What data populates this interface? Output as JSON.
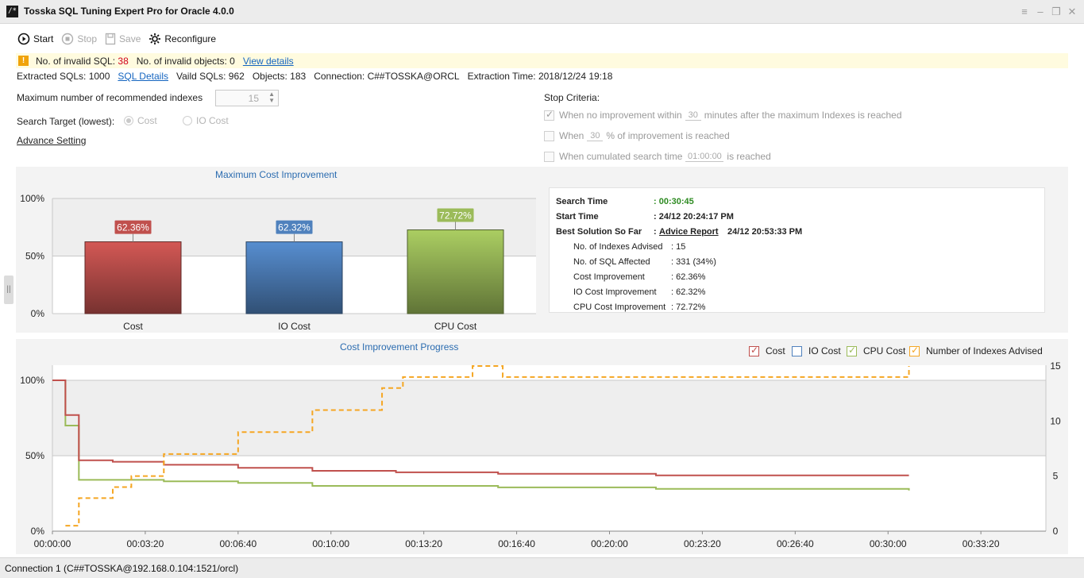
{
  "window": {
    "title": "Tosska SQL Tuning Expert Pro for Oracle 4.0.0",
    "icon_glyph": "/*"
  },
  "toolbar": {
    "start": "Start",
    "stop": "Stop",
    "save": "Save",
    "reconfigure": "Reconfigure"
  },
  "warning": {
    "invalid_sql_label": "No. of invalid SQL:",
    "invalid_sql_count": "38",
    "invalid_objects_label": "No. of invalid objects:",
    "invalid_objects_count": "0",
    "view_details": "View details"
  },
  "info": {
    "extracted": "Extracted SQLs: 1000",
    "sql_details": "SQL Details",
    "valid": "Vaild SQLs: 962",
    "objects": "Objects: 183",
    "connection": "Connection: C##TOSSKA@ORCL",
    "extraction_time": "Extraction Time: 2018/12/24 19:18"
  },
  "settings": {
    "max_indexes_label": "Maximum number of recommended indexes",
    "max_indexes_value": "15",
    "search_target_label": "Search Target (lowest):",
    "option_cost": "Cost",
    "option_io_cost": "IO Cost",
    "advance_setting": "Advance Setting"
  },
  "stop_criteria": {
    "title": "Stop Criteria:",
    "c1_pre": "When no improvement within",
    "c1_val": "30",
    "c1_post": "minutes after the maximum Indexes is reached",
    "c2_pre": "When",
    "c2_val": "30",
    "c2_post": "% of improvement is reached",
    "c3_pre": "When cumulated search time",
    "c3_val": "01:00:00",
    "c3_post": "is reached"
  },
  "stats": {
    "search_time_label": "Search Time",
    "search_time_value": ": 00:30:45",
    "start_time_label": "Start Time",
    "start_time_value": ": 24/12 20:24:17 PM",
    "best_solution_label": "Best Solution So Far",
    "colon": ":",
    "advice_report": "Advice Report",
    "best_solution_time": "24/12 20:53:33 PM",
    "indexes_label": "No. of Indexes Advised",
    "indexes_value": ": 15",
    "sql_affected_label": "No. of SQL Affected",
    "sql_affected_value": ": 331  (34%)",
    "cost_label": "Cost Improvement",
    "cost_value": ": 62.36%",
    "io_label": "IO Cost Improvement",
    "io_value": ": 62.32%",
    "cpu_label": "CPU Cost Improvement",
    "cpu_value": ": 72.72%"
  },
  "legend": {
    "cost": "Cost",
    "io_cost": "IO Cost",
    "cpu_cost": "CPU Cost",
    "indexes": "Number of Indexes Advised"
  },
  "colors": {
    "cost": "#c0504d",
    "io": "#4f81bd",
    "cpu": "#9bbb59",
    "indexes": "#f5a623"
  },
  "status": {
    "connection": "Connection 1 (C##TOSSKA@192.168.0.104:1521/orcl)"
  },
  "chart_data": [
    {
      "type": "bar",
      "title": "Maximum Cost Improvement",
      "categories": [
        "Cost",
        "IO Cost",
        "CPU Cost"
      ],
      "values": [
        62.36,
        62.32,
        72.72
      ],
      "labels": [
        "62.36%",
        "62.32%",
        "72.72%"
      ],
      "ylim": [
        0,
        100
      ],
      "yticks": [
        "0%",
        "50%",
        "100%"
      ],
      "grid": true
    },
    {
      "type": "line",
      "title": "Cost Improvement Progress",
      "xlim": [
        0,
        2140
      ],
      "xticks": [
        0,
        200,
        400,
        600,
        800,
        1000,
        1200,
        1400,
        1600,
        1800,
        2000
      ],
      "xtick_labels": [
        "00:00:00",
        "00:03:20",
        "00:06:40",
        "00:10:00",
        "00:13:20",
        "00:16:40",
        "00:20:00",
        "00:23:20",
        "00:26:40",
        "00:30:00",
        "00:33:20"
      ],
      "ylim": [
        0,
        110
      ],
      "yticks": [
        "0%",
        "50%",
        "100%"
      ],
      "y2lim": [
        0,
        15
      ],
      "y2ticks": [
        "0",
        "5",
        "10",
        "15"
      ],
      "legend_position": "top-right",
      "series": [
        {
          "name": "Cost",
          "axis": "left",
          "step": true,
          "x": [
            0,
            28,
            57,
            130,
            240,
            400,
            560,
            740,
            960,
            1300,
            1845
          ],
          "y": [
            100,
            77,
            47,
            46,
            44,
            42,
            40,
            39,
            38,
            37,
            37
          ]
        },
        {
          "name": "IO Cost",
          "axis": "left",
          "step": true,
          "x": [
            0,
            28,
            57,
            130,
            240,
            400,
            560,
            740,
            960,
            1300,
            1845
          ],
          "y": [
            100,
            77,
            47,
            46,
            44,
            42,
            40,
            39,
            38,
            37,
            37
          ]
        },
        {
          "name": "CPU Cost",
          "axis": "left",
          "step": true,
          "x": [
            0,
            28,
            57,
            240,
            400,
            560,
            960,
            1300,
            1845
          ],
          "y": [
            100,
            70,
            34,
            33,
            32,
            30,
            29,
            28,
            27
          ]
        },
        {
          "name": "Number of Indexes Advised",
          "axis": "right",
          "step": true,
          "dashed": true,
          "x": [
            28,
            57,
            130,
            170,
            240,
            400,
            560,
            710,
            755,
            905,
            970,
            1845
          ],
          "y": [
            0.5,
            3,
            4,
            5,
            7,
            9,
            11,
            13,
            14,
            15,
            14,
            15
          ]
        }
      ]
    }
  ]
}
